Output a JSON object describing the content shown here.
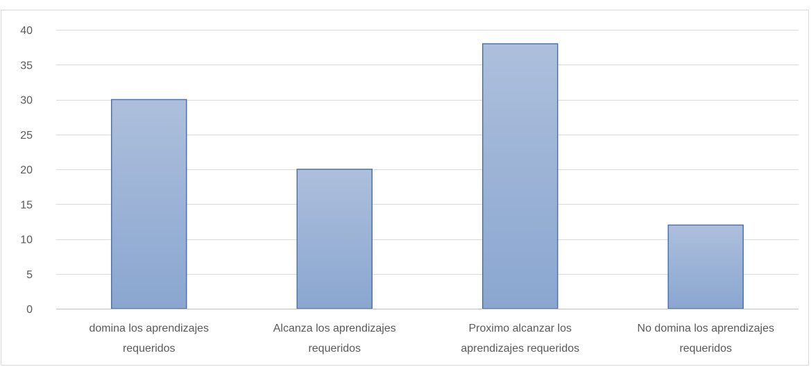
{
  "chart_data": {
    "type": "bar",
    "title": "",
    "xlabel": "",
    "ylabel": "",
    "categories": [
      "domina los aprendizajes requeridos",
      "Alcanza los aprendizajes requeridos",
      "Proximo alcanzar los aprendizajes requeridos",
      "No domina los aprendizajes requeridos"
    ],
    "category_lines": [
      [
        "domina los aprendizajes",
        "requeridos"
      ],
      [
        "Alcanza los aprendizajes",
        "requeridos"
      ],
      [
        "Proximo alcanzar los",
        "aprendizajes requeridos"
      ],
      [
        "No domina los aprendizajes",
        "requeridos"
      ]
    ],
    "values": [
      30,
      20,
      38,
      12
    ],
    "ylim": [
      0,
      40
    ],
    "yticks": [
      0,
      5,
      10,
      15,
      20,
      25,
      30,
      35,
      40
    ],
    "grid": true,
    "legend": "none",
    "colors": {
      "bar_top": "#adbfdc",
      "bar_bottom": "#8aa6d0",
      "bar_stroke": "#4a73b0",
      "grid": "#d9d9d9",
      "axis": "#bfbfbf",
      "frame": "#d9d9d9",
      "text": "#595959"
    }
  }
}
